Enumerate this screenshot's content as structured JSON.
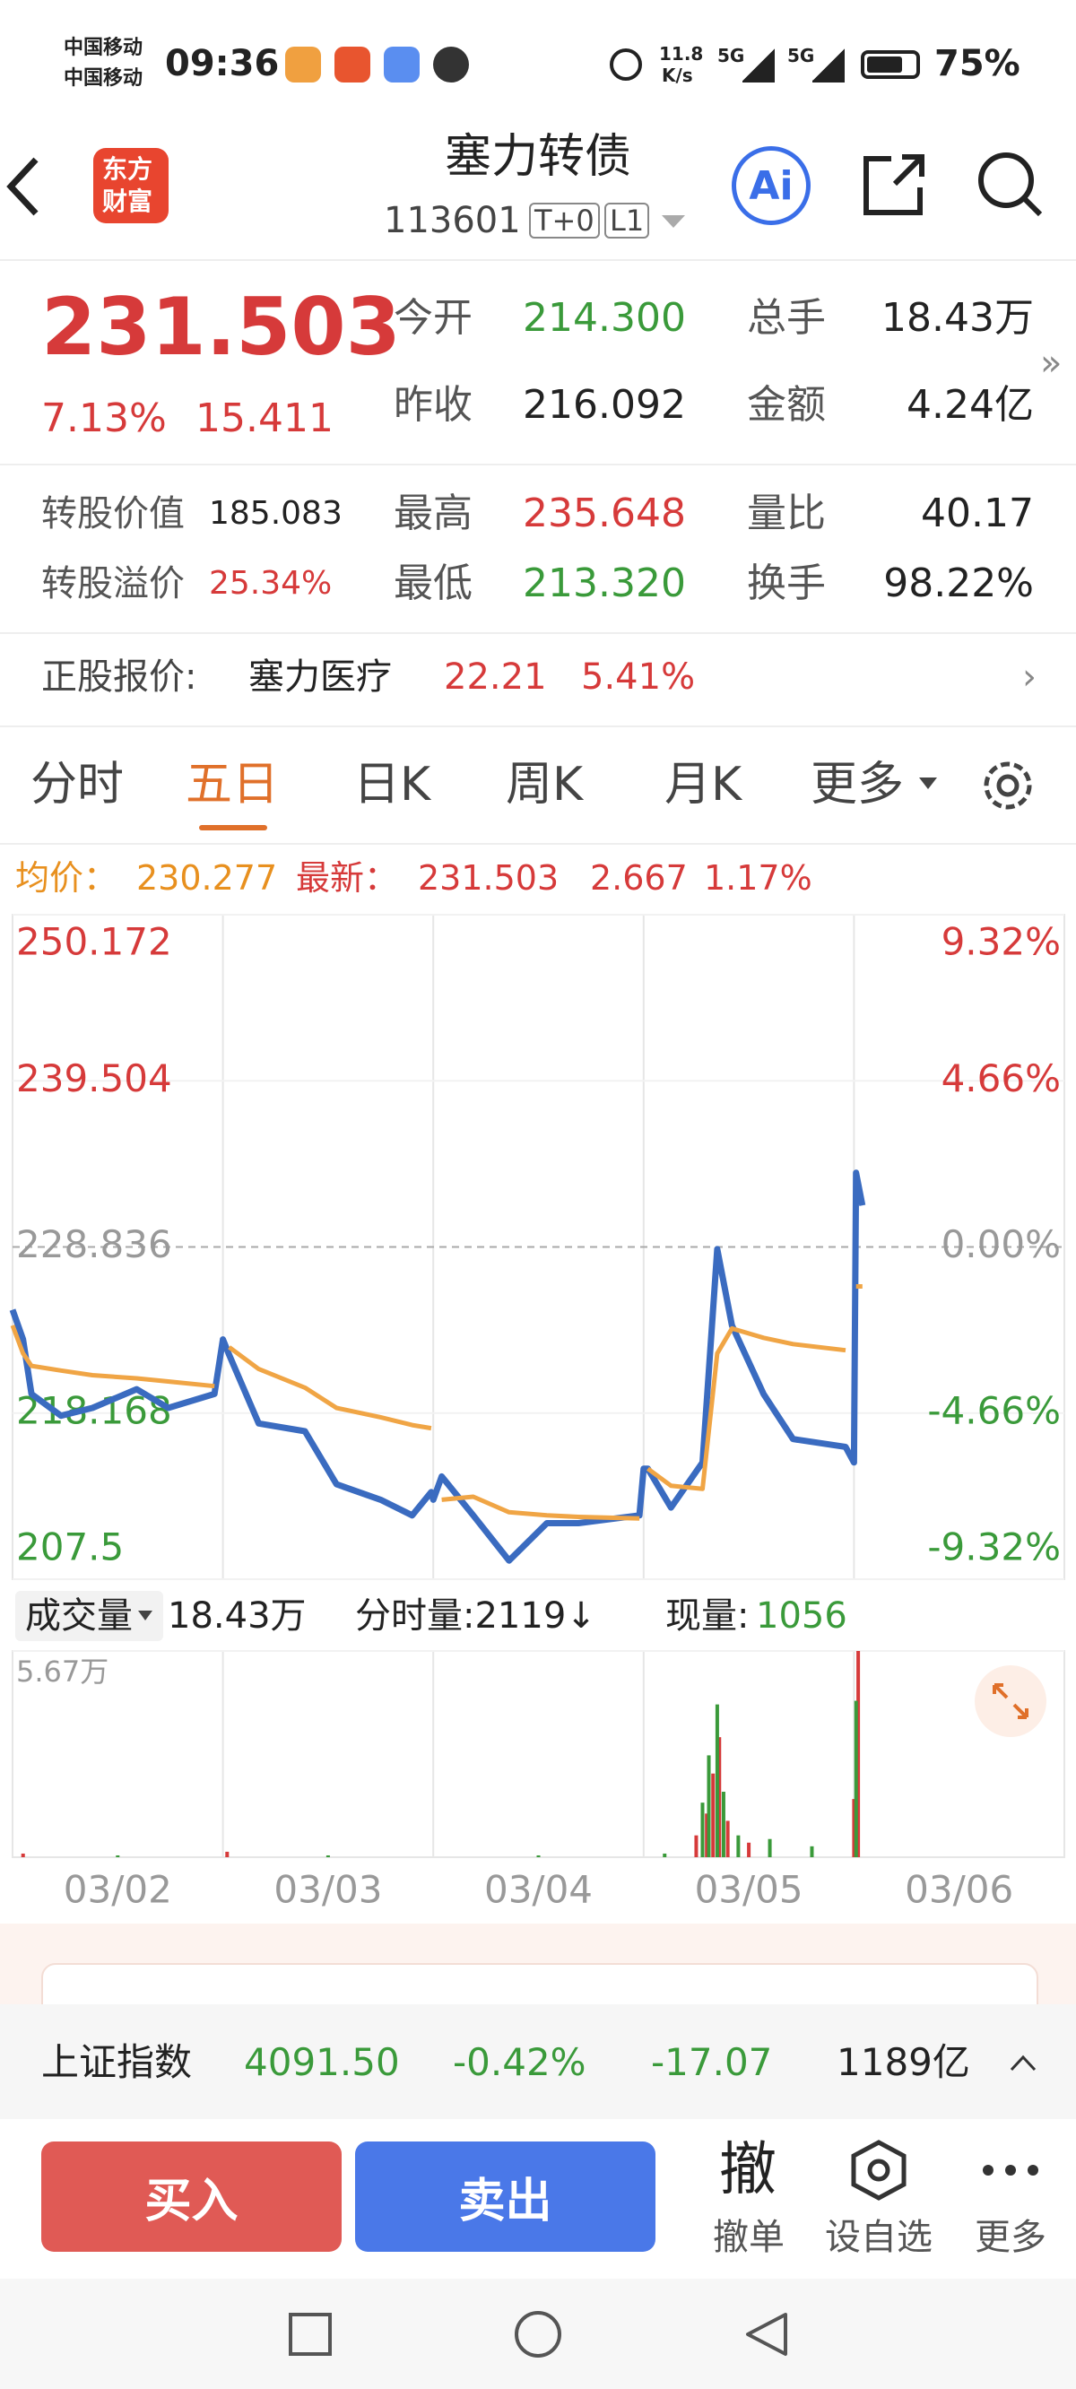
{
  "status_bar": {
    "carrier_1": "中国移动",
    "carrier_2": "中国移动",
    "time": "09:36",
    "net_speed": "11.8",
    "net_unit": "K/s",
    "signal_1": "5G",
    "signal_2": "5G",
    "battery": "75%"
  },
  "header": {
    "logo": [
      "东方",
      "财富"
    ],
    "title": "塞力转债",
    "code": "113601",
    "tags": [
      "T+0",
      "L1"
    ],
    "ai": "Ai"
  },
  "quote": {
    "price": "231.503",
    "change_pct": "7.13%",
    "change": "15.411",
    "rows": [
      [
        "今开",
        "214.300",
        "总手",
        "18.43万"
      ],
      [
        "昨收",
        "216.092",
        "金额",
        "4.24亿"
      ],
      [
        "转股价值",
        "185.083",
        "最高",
        "235.648",
        "量比",
        "40.17"
      ],
      [
        "转股溢价",
        "25.34%",
        "最低",
        "213.320",
        "换手",
        "98.22%"
      ]
    ]
  },
  "stock": {
    "label": "正股报价:",
    "name": "塞力医疗",
    "price": "22.21",
    "change_pct": "5.41%"
  },
  "tabs": [
    "分时",
    "五日",
    "日K",
    "周K",
    "月K",
    "更多"
  ],
  "chart_info": {
    "avg_label": "均价：",
    "avg": "230.277",
    "last_label": "最新：",
    "last": "231.503",
    "change": "2.667",
    "change_pct": "1.17%"
  },
  "chart_data": [
    {
      "type": "line",
      "grid": true,
      "x": [
        0,
        0.05,
        0.09,
        0.23,
        0.38,
        0.59,
        0.74,
        0.96,
        1,
        1.03,
        1.17,
        1.39,
        1.54,
        1.75,
        1.9,
        1.99,
        2,
        2.04,
        2.19,
        2.36,
        2.54,
        2.69,
        2.98,
        3,
        3.02,
        3.13,
        3.28,
        3.35,
        3.42,
        3.57,
        3.71,
        3.96,
        4,
        4.01,
        4.04
      ],
      "series": [
        {
          "color": "#3a6bc0",
          "values": [
            224.8,
            222.9,
            219.4,
            218.0,
            218.5,
            219.7,
            218.5,
            219.4,
            222.9,
            221.9,
            217.5,
            217.0,
            213.6,
            212.6,
            211.6,
            213.1,
            212.6,
            214.1,
            211.6,
            208.7,
            211.1,
            211.1,
            211.6,
            214.6,
            214.6,
            212.1,
            215.0,
            228.7,
            223.8,
            219.4,
            216.5,
            216.0,
            215.0,
            233.6,
            231.503
          ]
        },
        {
          "color": "#f0a545",
          "values": [
            223.8,
            222.0,
            221.2,
            220.9,
            220.6,
            220.4,
            220.2,
            219.9,
            null,
            222.4,
            221.0,
            219.8,
            218.5,
            217.9,
            217.4,
            217.2,
            null,
            212.6,
            212.8,
            211.8,
            211.6,
            211.5,
            211.4,
            null,
            214.6,
            213.5,
            213.3,
            222.0,
            223.6,
            223.0,
            222.6,
            222.2,
            null,
            226.3,
            226.3
          ]
        }
      ],
      "xlim": [
        0,
        5
      ],
      "ylim": [
        207.5,
        250.172
      ],
      "yticks": [
        250.172,
        239.504,
        228.836,
        218.168,
        207.5
      ],
      "y2lim": [
        -9.32,
        9.32
      ],
      "y2ticks": [
        {
          "value": 9.32,
          "label": "9.32%"
        },
        {
          "value": 4.66,
          "label": "4.66%"
        },
        {
          "value": 0,
          "label": "0.00%"
        },
        {
          "value": -4.66,
          "label": "-4.66%"
        },
        {
          "value": -9.32,
          "label": "-9.32%"
        }
      ]
    },
    {
      "type": "bar",
      "x": [
        0.05,
        0.5,
        1.02,
        1.5,
        2.5,
        3.1,
        3.25,
        3.28,
        3.3,
        3.31,
        3.33,
        3.35,
        3.36,
        3.38,
        3.4,
        3.45,
        3.5,
        3.6,
        3.8,
        4,
        4.01,
        4.02
      ],
      "series": [
        {
          "color": "#d63a3a",
          "values": [
            0.1,
            null,
            0.15,
            null,
            null,
            null,
            0.6,
            null,
            1.2,
            null,
            2.3,
            null,
            3.3,
            null,
            1.0,
            null,
            0.4,
            null,
            null,
            1.6,
            null,
            5.67
          ]
        },
        {
          "color": "#3a9a3a",
          "values": [
            null,
            0.05,
            null,
            0.05,
            0.05,
            0.1,
            null,
            1.5,
            null,
            2.8,
            null,
            4.2,
            null,
            1.8,
            null,
            0.6,
            null,
            0.5,
            0.3,
            null,
            4.3,
            null
          ]
        }
      ],
      "xlim": [
        0,
        5
      ],
      "ylim": [
        0,
        5.67
      ],
      "yticks": [
        {
          "value": 5.67,
          "label": "5.67万"
        }
      ],
      "xticks": [
        {
          "value": 0.5,
          "label": "03/02"
        },
        {
          "value": 1.5,
          "label": "03/03"
        },
        {
          "value": 2.5,
          "label": "03/04"
        },
        {
          "value": 3.5,
          "label": "03/05"
        },
        {
          "value": 4.5,
          "label": "03/06"
        }
      ]
    }
  ],
  "volume_info": {
    "label": "成交量",
    "total": "18.43万",
    "tick_volume": "分时量:2119↓",
    "now_label": "现量:",
    "now": "1056"
  },
  "index_bar": {
    "name": "上证指数",
    "value": "4091.50",
    "change_pct": "-0.42%",
    "change": "-17.07",
    "amount": "1189亿"
  },
  "actions": {
    "buy": "买入",
    "sell": "卖出",
    "cancel_icon": "撤",
    "cancel": "撤单",
    "watch": "设自选",
    "more": "更多"
  }
}
